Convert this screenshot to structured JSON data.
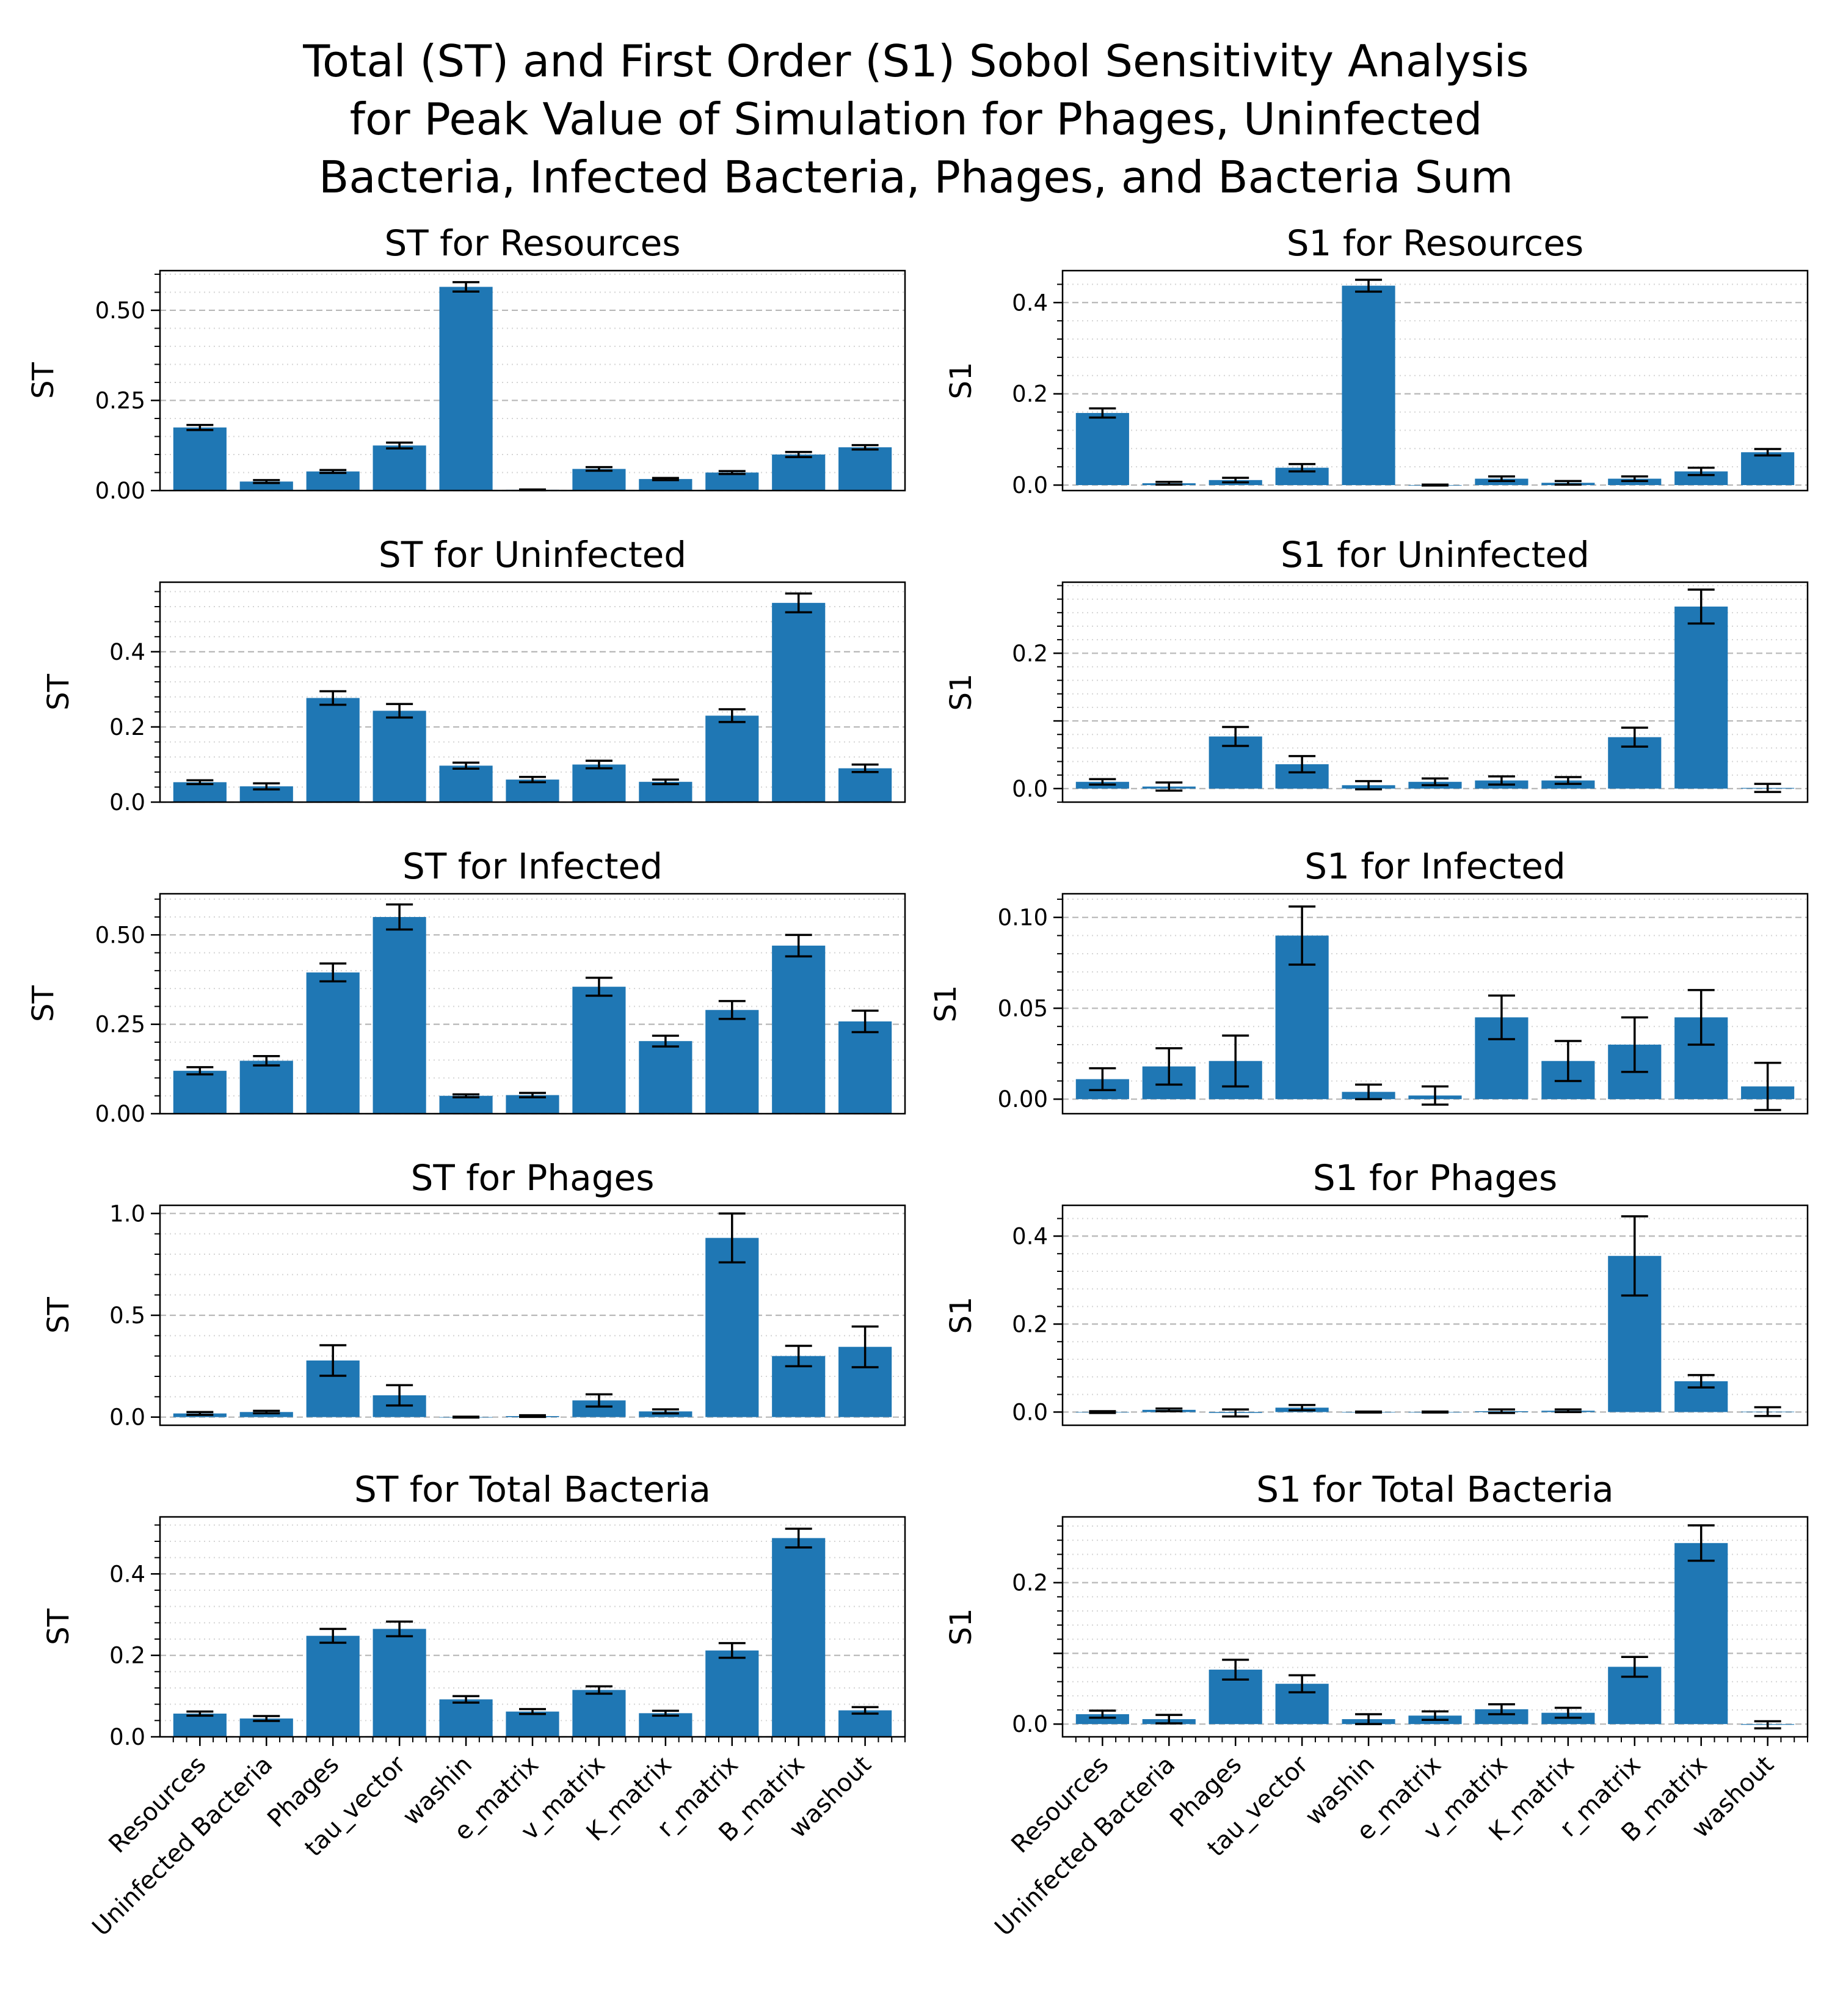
{
  "chart_data": {
    "type": "bar",
    "title_lines": [
      "Total (ST) and First Order (S1) Sobol Sensitivity Analysis",
      "for Peak Value of Simulation for Phages, Uninfected",
      "Bacteria, Infected Bacteria, Phages, and Bacteria Sum"
    ],
    "categories": [
      "Resources",
      "Uninfected Bacteria",
      "Phages",
      "tau_vector",
      "washin",
      "e_matrix",
      "v_matrix",
      "K_matrix",
      "r_matrix",
      "B_matrix",
      "washout"
    ],
    "bar_color": "#1f77b4",
    "grid": true,
    "panels": [
      {
        "title": "ST for Resources",
        "ylabel": "ST",
        "col": 0,
        "row": 0,
        "ylim": [
          0,
          0.61
        ],
        "yticks": [
          0,
          0.25,
          0.5
        ],
        "ytick_labels": [
          "0.00",
          "0.25",
          "0.50"
        ],
        "values": [
          0.175,
          0.025,
          0.053,
          0.125,
          0.565,
          0.002,
          0.06,
          0.032,
          0.05,
          0.1,
          0.12
        ],
        "errors": [
          0.007,
          0.004,
          0.004,
          0.008,
          0.013,
          0.001,
          0.005,
          0.003,
          0.004,
          0.007,
          0.006
        ]
      },
      {
        "title": "S1 for Resources",
        "ylabel": "S1",
        "col": 1,
        "row": 0,
        "ylim": [
          -0.012,
          0.47
        ],
        "yticks": [
          0,
          0.2,
          0.4
        ],
        "ytick_labels": [
          "0.0",
          "0.2",
          "0.4"
        ],
        "values": [
          0.158,
          0.004,
          0.011,
          0.038,
          0.437,
          0.0,
          0.014,
          0.005,
          0.014,
          0.03,
          0.072
        ],
        "errors": [
          0.01,
          0.003,
          0.005,
          0.008,
          0.013,
          0.001,
          0.005,
          0.004,
          0.005,
          0.008,
          0.007
        ]
      },
      {
        "title": "ST for Uninfected",
        "ylabel": "ST",
        "col": 0,
        "row": 1,
        "ylim": [
          0,
          0.585
        ],
        "yticks": [
          0,
          0.2,
          0.4
        ],
        "ytick_labels": [
          "0.0",
          "0.2",
          "0.4"
        ],
        "values": [
          0.053,
          0.042,
          0.277,
          0.243,
          0.097,
          0.06,
          0.1,
          0.054,
          0.23,
          0.53,
          0.09
        ],
        "errors": [
          0.005,
          0.008,
          0.018,
          0.018,
          0.008,
          0.007,
          0.01,
          0.006,
          0.017,
          0.025,
          0.01
        ]
      },
      {
        "title": "S1 for Uninfected",
        "ylabel": "S1",
        "col": 1,
        "row": 1,
        "ylim": [
          -0.02,
          0.305
        ],
        "yticks": [
          0,
          0.1,
          0.2
        ],
        "ytick_labels": [
          "0.0",
          "",
          "0.2"
        ],
        "values": [
          0.01,
          0.003,
          0.077,
          0.036,
          0.005,
          0.01,
          0.012,
          0.012,
          0.076,
          0.269,
          0.001
        ],
        "errors": [
          0.004,
          0.006,
          0.014,
          0.012,
          0.006,
          0.005,
          0.006,
          0.005,
          0.014,
          0.025,
          0.006
        ]
      },
      {
        "title": "ST for Infected",
        "ylabel": "ST",
        "col": 0,
        "row": 2,
        "ylim": [
          0,
          0.615
        ],
        "yticks": [
          0,
          0.25,
          0.5
        ],
        "ytick_labels": [
          "0.00",
          "0.25",
          "0.50"
        ],
        "values": [
          0.12,
          0.148,
          0.395,
          0.55,
          0.05,
          0.052,
          0.355,
          0.203,
          0.29,
          0.47,
          0.258
        ],
        "errors": [
          0.01,
          0.013,
          0.025,
          0.035,
          0.004,
          0.006,
          0.025,
          0.015,
          0.025,
          0.03,
          0.03
        ]
      },
      {
        "title": "S1 for Infected",
        "ylabel": "S1",
        "col": 1,
        "row": 2,
        "ylim": [
          -0.008,
          0.113
        ],
        "yticks": [
          0,
          0.05,
          0.1
        ],
        "ytick_labels": [
          "0.00",
          "0.05",
          "0.10"
        ],
        "values": [
          0.011,
          0.018,
          0.021,
          0.09,
          0.004,
          0.002,
          0.045,
          0.021,
          0.03,
          0.045,
          0.007
        ],
        "errors": [
          0.006,
          0.01,
          0.014,
          0.016,
          0.004,
          0.005,
          0.012,
          0.011,
          0.015,
          0.015,
          0.013
        ]
      },
      {
        "title": "ST for Phages",
        "ylabel": "ST",
        "col": 0,
        "row": 3,
        "ylim": [
          -0.04,
          1.04
        ],
        "yticks": [
          0,
          0.5,
          1.0
        ],
        "ytick_labels": [
          "0.0",
          "0.5",
          "1.0"
        ],
        "values": [
          0.018,
          0.025,
          0.278,
          0.107,
          0.0,
          0.005,
          0.082,
          0.028,
          0.88,
          0.3,
          0.345
        ],
        "errors": [
          0.007,
          0.006,
          0.075,
          0.05,
          0.002,
          0.004,
          0.03,
          0.01,
          0.12,
          0.05,
          0.1
        ]
      },
      {
        "title": "S1 for Phages",
        "ylabel": "S1",
        "col": 1,
        "row": 3,
        "ylim": [
          -0.03,
          0.47
        ],
        "yticks": [
          0,
          0.2,
          0.4
        ],
        "ytick_labels": [
          "0.0",
          "0.2",
          "0.4"
        ],
        "values": [
          0.0,
          0.005,
          -0.002,
          0.01,
          0.0,
          0.0,
          0.002,
          0.003,
          0.355,
          0.07,
          0.001
        ],
        "errors": [
          0.002,
          0.003,
          0.008,
          0.006,
          0.001,
          0.001,
          0.004,
          0.003,
          0.09,
          0.014,
          0.01
        ]
      },
      {
        "title": "ST for Total Bacteria",
        "ylabel": "ST",
        "col": 0,
        "row": 4,
        "ylim": [
          0,
          0.54
        ],
        "yticks": [
          0,
          0.2,
          0.4
        ],
        "ytick_labels": [
          "0.0",
          "0.2",
          "0.4"
        ],
        "values": [
          0.057,
          0.045,
          0.248,
          0.265,
          0.092,
          0.062,
          0.115,
          0.058,
          0.212,
          0.488,
          0.065
        ],
        "errors": [
          0.005,
          0.006,
          0.017,
          0.018,
          0.008,
          0.006,
          0.009,
          0.006,
          0.018,
          0.023,
          0.008
        ]
      },
      {
        "title": "S1 for Total Bacteria",
        "ylabel": "S1",
        "col": 1,
        "row": 4,
        "ylim": [
          -0.018,
          0.293
        ],
        "yticks": [
          0,
          0.1,
          0.2
        ],
        "ytick_labels": [
          "0.0",
          "",
          "0.2"
        ],
        "values": [
          0.014,
          0.007,
          0.077,
          0.057,
          0.007,
          0.012,
          0.021,
          0.016,
          0.081,
          0.256,
          -0.001
        ],
        "errors": [
          0.005,
          0.006,
          0.014,
          0.012,
          0.007,
          0.006,
          0.007,
          0.007,
          0.014,
          0.025,
          0.005
        ]
      }
    ]
  }
}
